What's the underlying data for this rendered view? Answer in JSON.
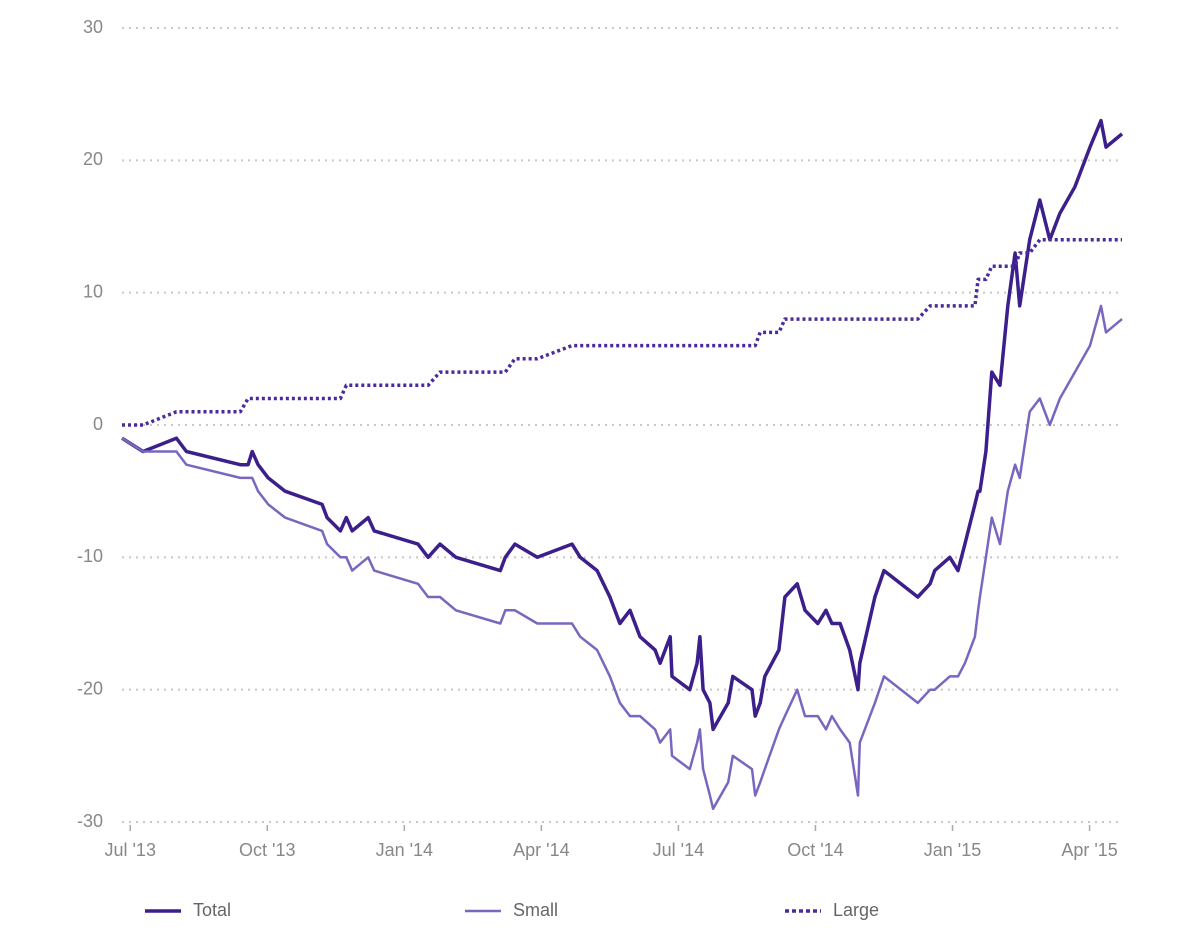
{
  "chart_data": {
    "type": "line",
    "x": [
      -0.18,
      0.28,
      1.01,
      1.23,
      2.41,
      2.58,
      2.67,
      2.8,
      3.02,
      3.39,
      4.2,
      4.31,
      4.6,
      4.73,
      4.86,
      5.21,
      5.34,
      6.3,
      6.52,
      6.78,
      7.13,
      8.1,
      8.21,
      8.42,
      8.91,
      9.67,
      9.85,
      10.22,
      10.5,
      10.72,
      10.94,
      11.16,
      11.49,
      11.6,
      11.82,
      11.86,
      12.25,
      12.41,
      12.47,
      12.54,
      12.69,
      12.76,
      13.09,
      13.19,
      13.61,
      13.68,
      13.79,
      13.89,
      14.2,
      14.33,
      14.6,
      14.77,
      15.05,
      15.23,
      15.36,
      15.54,
      15.75,
      15.93,
      15.97,
      16.3,
      16.5,
      17.24,
      17.51,
      17.61,
      17.94,
      18.12,
      18.27,
      18.49,
      18.56,
      18.6,
      18.73,
      18.86,
      19.04,
      19.21,
      19.37,
      19.47,
      19.69,
      19.91,
      20.13,
      20.35,
      20.68,
      21.01,
      21.25,
      21.36,
      21.71
    ],
    "series": [
      {
        "name": "Total",
        "color": "#3d1f8c",
        "width": 3.5,
        "dashed": false,
        "values": [
          -1,
          -2,
          -1,
          -2,
          -3,
          -3,
          -2,
          -3,
          -4,
          -5,
          -6,
          -7,
          -8,
          -7,
          -8,
          -7,
          -8,
          -9,
          -10,
          -9,
          -10,
          -11,
          -10,
          -9,
          -10,
          -9,
          -10,
          -11,
          -13,
          -15,
          -14,
          -16,
          -17,
          -18,
          -16,
          -19,
          -20,
          -18,
          -16,
          -20,
          -21,
          -23,
          -21,
          -19,
          -20,
          -22,
          -21,
          -19,
          -17,
          -13,
          -12,
          -14,
          -15,
          -14,
          -15,
          -15,
          -17,
          -20,
          -18,
          -13,
          -11,
          -13,
          -12,
          -11,
          -10,
          -11,
          -9,
          -6,
          -5,
          -5,
          -2,
          4,
          3,
          9,
          13,
          9,
          14,
          17,
          14,
          16,
          18,
          21,
          23,
          21,
          22
        ]
      },
      {
        "name": "Small",
        "color": "#7a66bf",
        "width": 2.5,
        "dashed": false,
        "values": [
          -1,
          -2,
          -2,
          -3,
          -4,
          -4,
          -4,
          -5,
          -6,
          -7,
          -8,
          -9,
          -10,
          -10,
          -11,
          -10,
          -11,
          -12,
          -13,
          -13,
          -14,
          -15,
          -14,
          -14,
          -15,
          -15,
          -16,
          -17,
          -19,
          -21,
          -22,
          -22,
          -23,
          -24,
          -23,
          -25,
          -26,
          -24,
          -23,
          -26,
          -28,
          -29,
          -27,
          -25,
          -26,
          -28,
          -27,
          -26,
          -23,
          -22,
          -20,
          -22,
          -22,
          -23,
          -22,
          -23,
          -24,
          -28,
          -24,
          -21,
          -19,
          -21,
          -20,
          -20,
          -19,
          -19,
          -18,
          -16,
          -14,
          -13,
          -10,
          -7,
          -9,
          -5,
          -3,
          -4,
          1,
          2,
          0,
          2,
          4,
          6,
          9,
          7,
          8
        ]
      },
      {
        "name": "Large",
        "color": "#4a2a9c",
        "width": 3.5,
        "dashed": true,
        "values": [
          0,
          0,
          1,
          1,
          1,
          2,
          2,
          2,
          2,
          2,
          2,
          2,
          2,
          3,
          3,
          3,
          3,
          3,
          3,
          4,
          4,
          4,
          4,
          5,
          5,
          6,
          6,
          6,
          6,
          6,
          6,
          6,
          6,
          6,
          6,
          6,
          6,
          6,
          6,
          6,
          6,
          6,
          6,
          6,
          6,
          6,
          7,
          7,
          7,
          8,
          8,
          8,
          8,
          8,
          8,
          8,
          8,
          8,
          8,
          8,
          8,
          8,
          9,
          9,
          9,
          9,
          9,
          9,
          11,
          11,
          11,
          12,
          12,
          12,
          12,
          13,
          13,
          14,
          14,
          14,
          14,
          14,
          14,
          14,
          14
        ]
      }
    ],
    "xlim": [
      -0.18,
      21.71
    ],
    "xticks": [
      {
        "value": 0,
        "label": "Jul '13"
      },
      {
        "value": 3,
        "label": "Oct '13"
      },
      {
        "value": 6,
        "label": "Jan '14"
      },
      {
        "value": 9,
        "label": "Apr '14"
      },
      {
        "value": 12,
        "label": "Jul '14"
      },
      {
        "value": 15,
        "label": "Oct '14"
      },
      {
        "value": 18,
        "label": "Jan '15"
      },
      {
        "value": 21,
        "label": "Apr '15"
      }
    ],
    "ylim": [
      -30,
      30
    ],
    "yticks": [
      -30,
      -20,
      -10,
      0,
      10,
      20,
      30
    ],
    "grid": true,
    "legend": "bottom"
  }
}
